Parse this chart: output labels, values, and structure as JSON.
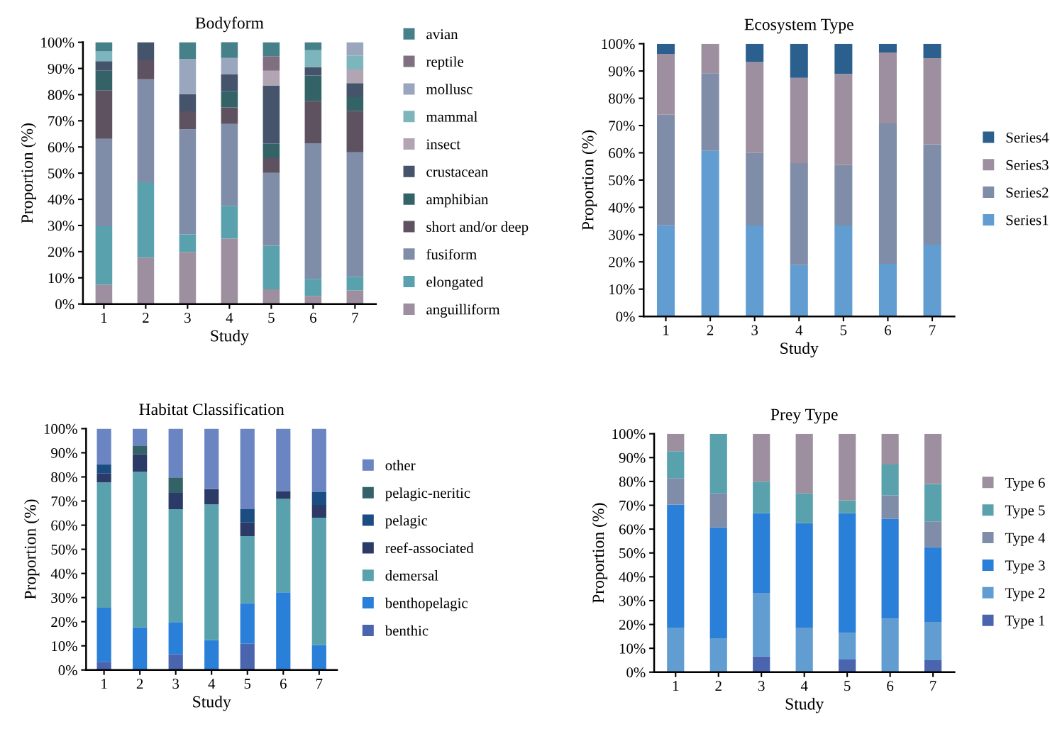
{
  "chart_data": [
    {
      "type": "bar",
      "stacked": true,
      "title": "Bodyform",
      "xlabel": "Study",
      "ylabel": "Proportion (%)",
      "categories": [
        "1",
        "2",
        "3",
        "4",
        "5",
        "6",
        "7"
      ],
      "ylim": [
        0,
        100
      ],
      "yticks": [
        {
          "value": 0,
          "label": "0%"
        },
        {
          "value": 10,
          "label": "10%"
        },
        {
          "value": 20,
          "label": "20%"
        },
        {
          "value": 30,
          "label": "30%"
        },
        {
          "value": 40,
          "label": "40%"
        },
        {
          "value": 50,
          "label": "50%"
        },
        {
          "value": 60,
          "label": "60%"
        },
        {
          "value": 70,
          "label": "70%"
        },
        {
          "value": 80,
          "label": "80%"
        },
        {
          "value": 90,
          "label": "90%"
        },
        {
          "value": 100,
          "label": "100%"
        }
      ],
      "legend": "right",
      "grid": false,
      "series": [
        {
          "name": "anguilliform",
          "color": "#9d8f9f",
          "values": [
            7.4,
            17.7,
            19.9,
            25.0,
            5.6,
            3.1,
            5.2
          ]
        },
        {
          "name": "elongated",
          "color": "#59a2ad",
          "values": [
            22.3,
            28.8,
            6.7,
            12.5,
            16.7,
            6.5,
            5.2
          ]
        },
        {
          "name": "fusiform",
          "color": "#7f8da8",
          "values": [
            33.4,
            39.4,
            40.2,
            31.3,
            27.8,
            51.8,
            47.6
          ]
        },
        {
          "name": "short and/or deep",
          "color": "#5e5260",
          "values": [
            18.6,
            7.2,
            6.8,
            6.3,
            5.6,
            16.2,
            15.8
          ]
        },
        {
          "name": "amphibian",
          "color": "#336366",
          "values": [
            7.4,
            0,
            0,
            6.3,
            5.6,
            9.7,
            5.2
          ]
        },
        {
          "name": "crustacean",
          "color": "#45536b",
          "values": [
            3.7,
            6.9,
            6.6,
            6.3,
            22.2,
            3.2,
            5.4
          ]
        },
        {
          "name": "insect",
          "color": "#b2a5b3",
          "values": [
            0,
            0,
            0,
            0,
            5.6,
            0,
            5.2
          ]
        },
        {
          "name": "mammal",
          "color": "#7db5bd",
          "values": [
            3.7,
            0,
            0,
            0,
            0,
            6.5,
            5.3
          ]
        },
        {
          "name": "mollusc",
          "color": "#9aa6bd",
          "values": [
            0,
            0,
            13.4,
            6.3,
            0,
            0,
            5.1
          ]
        },
        {
          "name": "reptile",
          "color": "#7f6f80",
          "values": [
            0,
            0,
            0,
            0,
            5.6,
            0,
            0
          ]
        },
        {
          "name": "avian",
          "color": "#46818a",
          "values": [
            3.5,
            0,
            6.4,
            6.2,
            5.3,
            3.0,
            0
          ]
        }
      ]
    },
    {
      "type": "bar",
      "stacked": true,
      "title": "Ecosystem Type",
      "xlabel": "Study",
      "ylabel": "Proportion (%)",
      "categories": [
        "1",
        "2",
        "3",
        "4",
        "5",
        "6",
        "7"
      ],
      "ylim": [
        0,
        100
      ],
      "yticks": [
        {
          "value": 0,
          "label": "0%"
        },
        {
          "value": 10,
          "label": "10%"
        },
        {
          "value": 20,
          "label": "20%"
        },
        {
          "value": 30,
          "label": "30%"
        },
        {
          "value": 40,
          "label": "40%"
        },
        {
          "value": 50,
          "label": "50%"
        },
        {
          "value": 60,
          "label": "60%"
        },
        {
          "value": 70,
          "label": "70%"
        },
        {
          "value": 80,
          "label": "80%"
        },
        {
          "value": 90,
          "label": "90%"
        },
        {
          "value": 100,
          "label": "100%"
        }
      ],
      "legend": "right",
      "grid": false,
      "series": [
        {
          "name": "Series1",
          "color": "#619dd1",
          "values": [
            33.4,
            60.7,
            33.3,
            18.8,
            33.3,
            19.3,
            26.3
          ]
        },
        {
          "name": "Series2",
          "color": "#7f8da8",
          "values": [
            40.6,
            28.5,
            26.6,
            37.4,
            22.2,
            51.5,
            36.8
          ]
        },
        {
          "name": "Series3",
          "color": "#9d8f9f",
          "values": [
            22.3,
            10.8,
            33.4,
            31.3,
            33.4,
            26.0,
            31.6
          ]
        },
        {
          "name": "Series4",
          "color": "#2b5f8e",
          "values": [
            3.7,
            0,
            6.7,
            12.5,
            11.1,
            3.2,
            5.3
          ]
        }
      ]
    },
    {
      "type": "bar",
      "stacked": true,
      "title": "Habitat Classification",
      "xlabel": "Study",
      "ylabel": "Proportion (%)",
      "categories": [
        "1",
        "2",
        "3",
        "4",
        "5",
        "6",
        "7"
      ],
      "ylim": [
        0,
        100
      ],
      "yticks": [
        {
          "value": 0,
          "label": "0%"
        },
        {
          "value": 10,
          "label": "10%"
        },
        {
          "value": 20,
          "label": "20%"
        },
        {
          "value": 30,
          "label": "30%"
        },
        {
          "value": 40,
          "label": "40%"
        },
        {
          "value": 50,
          "label": "50%"
        },
        {
          "value": 60,
          "label": "60%"
        },
        {
          "value": 70,
          "label": "70%"
        },
        {
          "value": 80,
          "label": "80%"
        },
        {
          "value": 90,
          "label": "90%"
        },
        {
          "value": 100,
          "label": "100%"
        }
      ],
      "legend": "right",
      "grid": false,
      "series": [
        {
          "name": "benthic",
          "color": "#4a64ae",
          "values": [
            3.4,
            0,
            6.5,
            0,
            10.9,
            0,
            0
          ]
        },
        {
          "name": "benthopelagic",
          "color": "#2a7fd8",
          "values": [
            22.4,
            17.6,
            13.3,
            12.4,
            16.7,
            32.2,
            10.3
          ]
        },
        {
          "name": "demersal",
          "color": "#59a2ad",
          "values": [
            51.9,
            64.5,
            46.8,
            56.2,
            27.9,
            38.7,
            52.8
          ]
        },
        {
          "name": "reef-associated",
          "color": "#2b3a66",
          "values": [
            3.7,
            7.2,
            6.8,
            6.3,
            5.6,
            3.2,
            5.3
          ]
        },
        {
          "name": "pelagic",
          "color": "#1b4c82",
          "values": [
            3.8,
            0,
            0,
            0,
            5.5,
            0,
            5.3
          ]
        },
        {
          "name": "pelagic-neritic",
          "color": "#336366",
          "values": [
            0,
            3.5,
            6.4,
            0,
            0,
            0,
            0
          ]
        },
        {
          "name": "other",
          "color": "#6b84c2",
          "values": [
            14.8,
            7.2,
            20.2,
            25.1,
            33.4,
            25.9,
            26.3
          ]
        }
      ]
    },
    {
      "type": "bar",
      "stacked": true,
      "title": "Prey Type",
      "xlabel": "Study",
      "ylabel": "Proportion (%)",
      "categories": [
        "1",
        "2",
        "3",
        "4",
        "5",
        "6",
        "7"
      ],
      "ylim": [
        0,
        100
      ],
      "yticks": [
        {
          "value": 0,
          "label": "0%"
        },
        {
          "value": 10,
          "label": "10%"
        },
        {
          "value": 20,
          "label": "20%"
        },
        {
          "value": 30,
          "label": "30%"
        },
        {
          "value": 40,
          "label": "40%"
        },
        {
          "value": 50,
          "label": "50%"
        },
        {
          "value": 60,
          "label": "60%"
        },
        {
          "value": 70,
          "label": "70%"
        },
        {
          "value": 80,
          "label": "80%"
        },
        {
          "value": 90,
          "label": "90%"
        },
        {
          "value": 100,
          "label": "100%"
        }
      ],
      "legend": "right",
      "grid": false,
      "series": [
        {
          "name": "Type 1",
          "color": "#4a64ae",
          "values": [
            0,
            0,
            6.6,
            0,
            5.3,
            0,
            5.0
          ]
        },
        {
          "name": "Type 2",
          "color": "#619dd1",
          "values": [
            18.7,
            14.2,
            26.7,
            18.7,
            11.2,
            22.5,
            16.1
          ]
        },
        {
          "name": "Type 3",
          "color": "#2a7fd8",
          "values": [
            51.6,
            46.5,
            33.4,
            43.9,
            50.2,
            41.8,
            31.3
          ]
        },
        {
          "name": "Type 4",
          "color": "#7f8da8",
          "values": [
            11.1,
            14.3,
            0,
            0,
            0,
            9.9,
            10.8
          ]
        },
        {
          "name": "Type 5",
          "color": "#59a2ad",
          "values": [
            11.3,
            25.0,
            13.2,
            12.4,
            5.4,
            12.9,
            15.7
          ]
        },
        {
          "name": "Type 6",
          "color": "#9d8f9f",
          "values": [
            7.3,
            0,
            20.1,
            25.0,
            27.9,
            12.9,
            21.1
          ]
        }
      ]
    }
  ]
}
